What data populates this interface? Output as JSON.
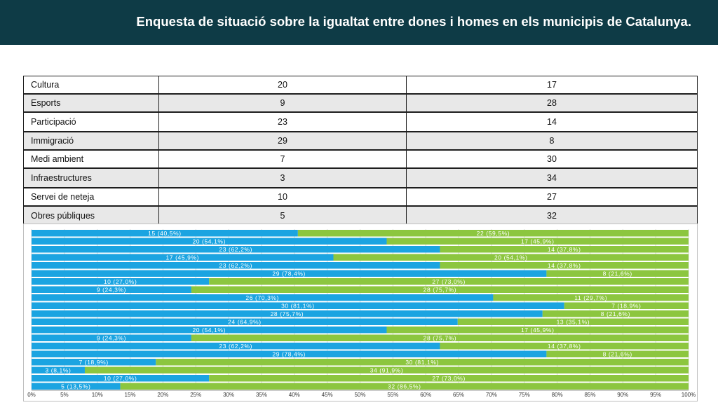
{
  "header": {
    "title": "Enquesta de situació sobre la  igualtat entre dones i homes en els municipis de Catalunya."
  },
  "table": {
    "rows": [
      {
        "label": "Cultura",
        "a": "20",
        "b": "17"
      },
      {
        "label": "Esports",
        "a": "9",
        "b": "28"
      },
      {
        "label": "Participació",
        "a": "23",
        "b": "14"
      },
      {
        "label": "Immigració",
        "a": "29",
        "b": "8"
      },
      {
        "label": "Medi ambient",
        "a": "7",
        "b": "30"
      },
      {
        "label": "Infraestructures",
        "a": "3",
        "b": "34"
      },
      {
        "label": "Servei de neteja",
        "a": "10",
        "b": "27"
      },
      {
        "label": "Obres públiques",
        "a": "5",
        "b": "32"
      }
    ]
  },
  "chart_data": {
    "type": "bar",
    "orientation": "horizontal-stacked-percent",
    "colors": {
      "series1": "#1ba4e1",
      "series2": "#8cc63f"
    },
    "x_ticks": [
      "0%",
      "5%",
      "10%",
      "15%",
      "20%",
      "25%",
      "30%",
      "35%",
      "40%",
      "45%",
      "50%",
      "55%",
      "60%",
      "65%",
      "70%",
      "75%",
      "80%",
      "85%",
      "90%",
      "95%",
      "100%"
    ],
    "xlim": [
      0,
      100
    ],
    "grid": true,
    "bars": [
      {
        "s1": 15,
        "s1_label": "15 (40,5%)",
        "s2": 22,
        "s2_label": "22 (59,5%)"
      },
      {
        "s1": 20,
        "s1_label": "20 (54,1%)",
        "s2": 17,
        "s2_label": "17 (45,9%)"
      },
      {
        "s1": 23,
        "s1_label": "23 (62,2%)",
        "s2": 14,
        "s2_label": "14 (37,8%)"
      },
      {
        "s1": 17,
        "s1_label": "17 (45,9%)",
        "s2": 20,
        "s2_label": "20 (54,1%)"
      },
      {
        "s1": 23,
        "s1_label": "23 (62,2%)",
        "s2": 14,
        "s2_label": "14 (37,8%)"
      },
      {
        "s1": 29,
        "s1_label": "29 (78,4%)",
        "s2": 8,
        "s2_label": "8 (21,6%)"
      },
      {
        "s1": 10,
        "s1_label": "10 (27,0%)",
        "s2": 27,
        "s2_label": "27 (73,0%)"
      },
      {
        "s1": 9,
        "s1_label": "9 (24,3%)",
        "s2": 28,
        "s2_label": "28 (75,7%)"
      },
      {
        "s1": 26,
        "s1_label": "26 (70,3%)",
        "s2": 11,
        "s2_label": "11 (29,7%)"
      },
      {
        "s1": 30,
        "s1_label": "30 (81,1%)",
        "s2": 7,
        "s2_label": "7 (18,9%)"
      },
      {
        "s1": 28,
        "s1_label": "28 (75,7%)",
        "s2": 8,
        "s2_label": "8 (21,6%)"
      },
      {
        "s1": 24,
        "s1_label": "24 (64,9%)",
        "s2": 13,
        "s2_label": "13 (35,1%)"
      },
      {
        "s1": 20,
        "s1_label": "20 (54,1%)",
        "s2": 17,
        "s2_label": "17 (45,9%)"
      },
      {
        "s1": 9,
        "s1_label": "9 (24,3%)",
        "s2": 28,
        "s2_label": "28 (75,7%)"
      },
      {
        "s1": 23,
        "s1_label": "23 (62,2%)",
        "s2": 14,
        "s2_label": "14 (37,8%)"
      },
      {
        "s1": 29,
        "s1_label": "29 (78,4%)",
        "s2": 8,
        "s2_label": "8 (21,6%)"
      },
      {
        "s1": 7,
        "s1_label": "7 (18,9%)",
        "s2": 30,
        "s2_label": "30 (81,1%)"
      },
      {
        "s1": 3,
        "s1_label": "3 (8,1%)",
        "s2": 34,
        "s2_label": "34 (91,9%)"
      },
      {
        "s1": 10,
        "s1_label": "10 (27,0%)",
        "s2": 27,
        "s2_label": "27 (73,0%)"
      },
      {
        "s1": 5,
        "s1_label": "5 (13,5%)",
        "s2": 32,
        "s2_label": "32 (86,5%)"
      }
    ]
  }
}
